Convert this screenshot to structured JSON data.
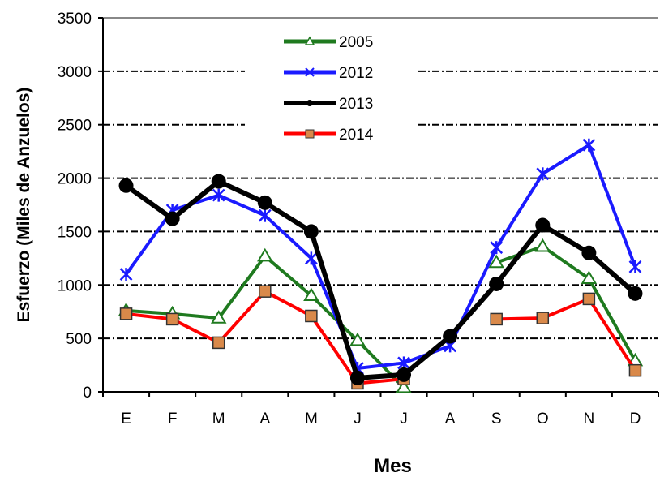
{
  "chart_data": {
    "type": "line",
    "xlabel": "Mes",
    "ylabel": "Esfuerzo (Miles de Anzuelos)",
    "categories": [
      "E",
      "F",
      "M",
      "A",
      "M",
      "J",
      "J",
      "A",
      "S",
      "O",
      "N",
      "D"
    ],
    "ylim": [
      0,
      3500
    ],
    "yticks": [
      0,
      500,
      1000,
      1500,
      2000,
      2500,
      3000,
      3500
    ],
    "grid": "horizontal dashed",
    "legend_position": "top-center",
    "series": [
      {
        "name": "2005",
        "color": "#1f7a1f",
        "marker": "open-triangle",
        "values": [
          760,
          730,
          690,
          1270,
          900,
          480,
          40,
          null,
          1210,
          1360,
          1060,
          290
        ]
      },
      {
        "name": "2012",
        "color": "#1a1aff",
        "marker": "star",
        "values": [
          1100,
          1700,
          1840,
          1650,
          1250,
          220,
          270,
          430,
          1350,
          2040,
          2310,
          1170
        ]
      },
      {
        "name": "2013",
        "color": "#000000",
        "marker": "filled-circle",
        "values": [
          1930,
          1620,
          1970,
          1770,
          1500,
          130,
          160,
          520,
          1010,
          1560,
          1300,
          920
        ]
      },
      {
        "name": "2014",
        "color": "#ff0000",
        "marker": "orange-square",
        "values": [
          730,
          680,
          460,
          940,
          710,
          80,
          120,
          null,
          680,
          690,
          870,
          200
        ]
      }
    ]
  }
}
